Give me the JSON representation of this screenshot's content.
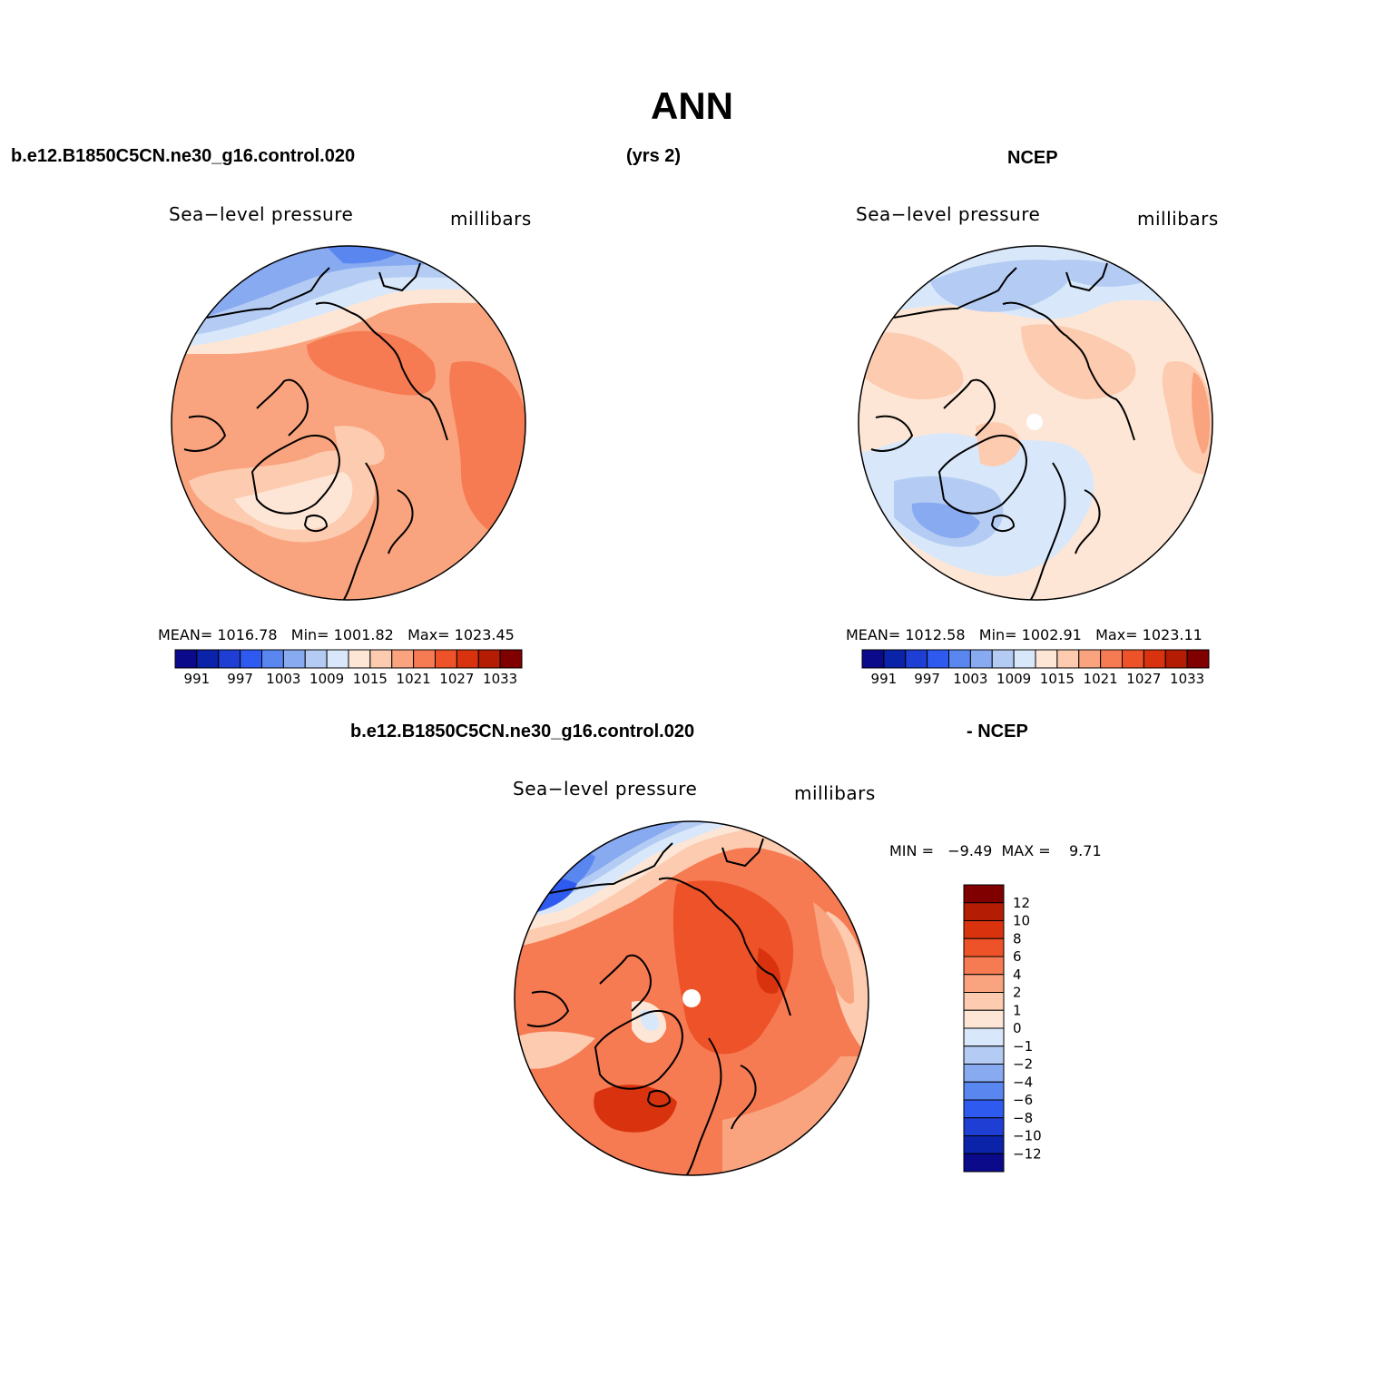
{
  "title": "ANN",
  "top_left_header": "b.e12.B1850C5CN.ne30_g16.control.020",
  "top_mid_header": "(yrs 2)",
  "top_right_header": "NCEP",
  "bottom_header_left": "b.e12.B1850C5CN.ne30_g16.control.020",
  "bottom_header_right": "- NCEP",
  "panels": {
    "model": {
      "variable": "Sea−level pressure",
      "units": "millibars",
      "stats": {
        "mean_label": "MEAN=",
        "mean": "1016.78",
        "min_label": "Min=",
        "min": "1001.82",
        "max_label": "Max=",
        "max": "1023.45"
      }
    },
    "obs": {
      "variable": "Sea−level pressure",
      "units": "millibars",
      "stats": {
        "mean_label": "MEAN=",
        "mean": "1012.58",
        "min_label": "Min=",
        "min": "1002.91",
        "max_label": "Max=",
        "max": "1023.11"
      }
    },
    "diff": {
      "variable": "Sea−level pressure",
      "units": "millibars",
      "stats": {
        "min_label": "MIN =",
        "min": "−9.49",
        "max_label": "MAX =",
        "max": "9.71"
      }
    }
  },
  "colorbar_abs": {
    "colors": [
      "#0a0a8a",
      "#0a23a8",
      "#1e3ed4",
      "#2f5af0",
      "#5a86f0",
      "#88aaf0",
      "#b4ccf4",
      "#d8e8fa",
      "#fde6d6",
      "#fccbb0",
      "#f9a47e",
      "#f67a52",
      "#ee5228",
      "#d8330e",
      "#b41c04",
      "#800000"
    ],
    "labels": [
      "991",
      "997",
      "1003",
      "1009",
      "1015",
      "1021",
      "1027",
      "1033"
    ]
  },
  "colorbar_diff": {
    "colors": [
      "#800000",
      "#b41c04",
      "#d8330e",
      "#ee5228",
      "#f67a52",
      "#f9a47e",
      "#fccbb0",
      "#fde6d6",
      "#d8e8fa",
      "#b4ccf4",
      "#88aaf0",
      "#5a86f0",
      "#2f5af0",
      "#1e3ed4",
      "#0a23a8",
      "#0a0a8a"
    ],
    "labels": [
      "12",
      "10",
      "8",
      "6",
      "4",
      "2",
      "1",
      "0",
      "−1",
      "−2",
      "−4",
      "−6",
      "−8",
      "−10",
      "−12"
    ]
  }
}
